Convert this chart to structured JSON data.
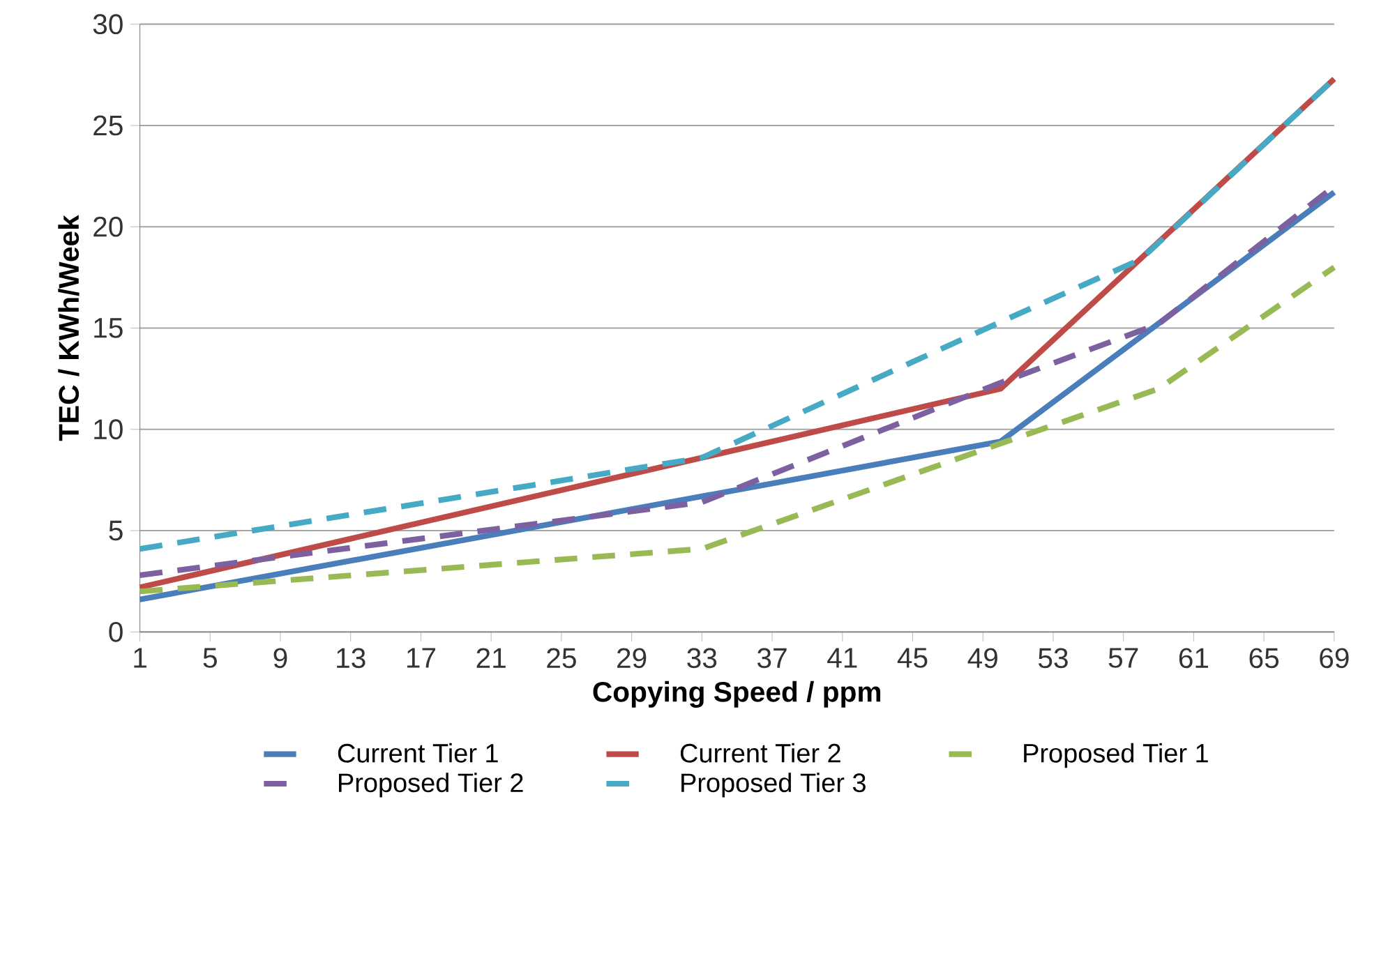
{
  "chart_data": {
    "type": "line",
    "xlabel": "Copying Speed / ppm",
    "ylabel": "TEC / KWh/Week",
    "xlim": [
      1,
      69
    ],
    "xticks": [
      1,
      5,
      9,
      13,
      17,
      21,
      25,
      29,
      33,
      37,
      41,
      45,
      49,
      53,
      57,
      61,
      65,
      69
    ],
    "ylim": [
      0,
      30
    ],
    "yticks": [
      0,
      5,
      10,
      15,
      20,
      25,
      30
    ],
    "grid": "y",
    "legend": "bottom",
    "marker": "none",
    "series": [
      {
        "name": "Current Tier 1",
        "color": "#4a7ebb",
        "line_style": "solid",
        "x": [
          1,
          50,
          69
        ],
        "values": [
          1.6,
          9.4,
          21.7
        ]
      },
      {
        "name": "Current Tier 2",
        "color": "#be4b48",
        "line_style": "solid",
        "x": [
          1,
          50,
          69
        ],
        "values": [
          2.2,
          12.0,
          27.3
        ]
      },
      {
        "name": "Proposed Tier 1",
        "color": "#98b954",
        "line_style": "dashed",
        "x": [
          1,
          33,
          50,
          59,
          69
        ],
        "values": [
          2.0,
          4.1,
          9.3,
          12.0,
          18.0
        ]
      },
      {
        "name": "Proposed Tier 2",
        "color": "#7d60a0",
        "line_style": "dashed",
        "x": [
          1,
          33,
          50,
          59,
          69
        ],
        "values": [
          2.8,
          6.4,
          12.3,
          15.2,
          22.0
        ]
      },
      {
        "name": "Proposed Tier 3",
        "color": "#46aac5",
        "line_style": "dashed",
        "x": [
          1,
          33,
          50,
          58,
          69
        ],
        "values": [
          4.1,
          8.6,
          15.3,
          18.4,
          27.3
        ]
      }
    ]
  }
}
